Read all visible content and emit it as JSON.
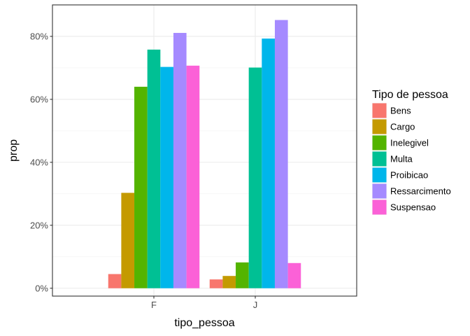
{
  "chart_data": {
    "type": "bar",
    "xlabel": "tipo_pessoa",
    "ylabel": "prop",
    "ylim": [
      -0.025,
      0.9
    ],
    "y_ticks": [
      0,
      0.2,
      0.4,
      0.6,
      0.8
    ],
    "y_tick_labels": [
      "0%",
      "20%",
      "40%",
      "60%",
      "80%"
    ],
    "y_format": "percent",
    "grid": true,
    "legend": {
      "title": "Tipo de pessoa",
      "placement": "right"
    },
    "categories": [
      "F",
      "J"
    ],
    "series": [
      {
        "name": "Bens",
        "color": "#F8766D",
        "values": [
          0.045,
          0.028
        ]
      },
      {
        "name": "Cargo",
        "color": "#C49A00",
        "values": [
          0.303,
          0.039
        ]
      },
      {
        "name": "Inelegivel",
        "color": "#53B400",
        "values": [
          0.64,
          0.082
        ]
      },
      {
        "name": "Multa",
        "color": "#00C094",
        "values": [
          0.758,
          0.701
        ]
      },
      {
        "name": "Proibicao",
        "color": "#00B6EB",
        "values": [
          0.703,
          0.793
        ]
      },
      {
        "name": "Ressarcimento",
        "color": "#A58AFF",
        "values": [
          0.811,
          0.852
        ]
      },
      {
        "name": "Suspensao",
        "color": "#FB61D7",
        "values": [
          0.707,
          0.08
        ]
      }
    ]
  }
}
